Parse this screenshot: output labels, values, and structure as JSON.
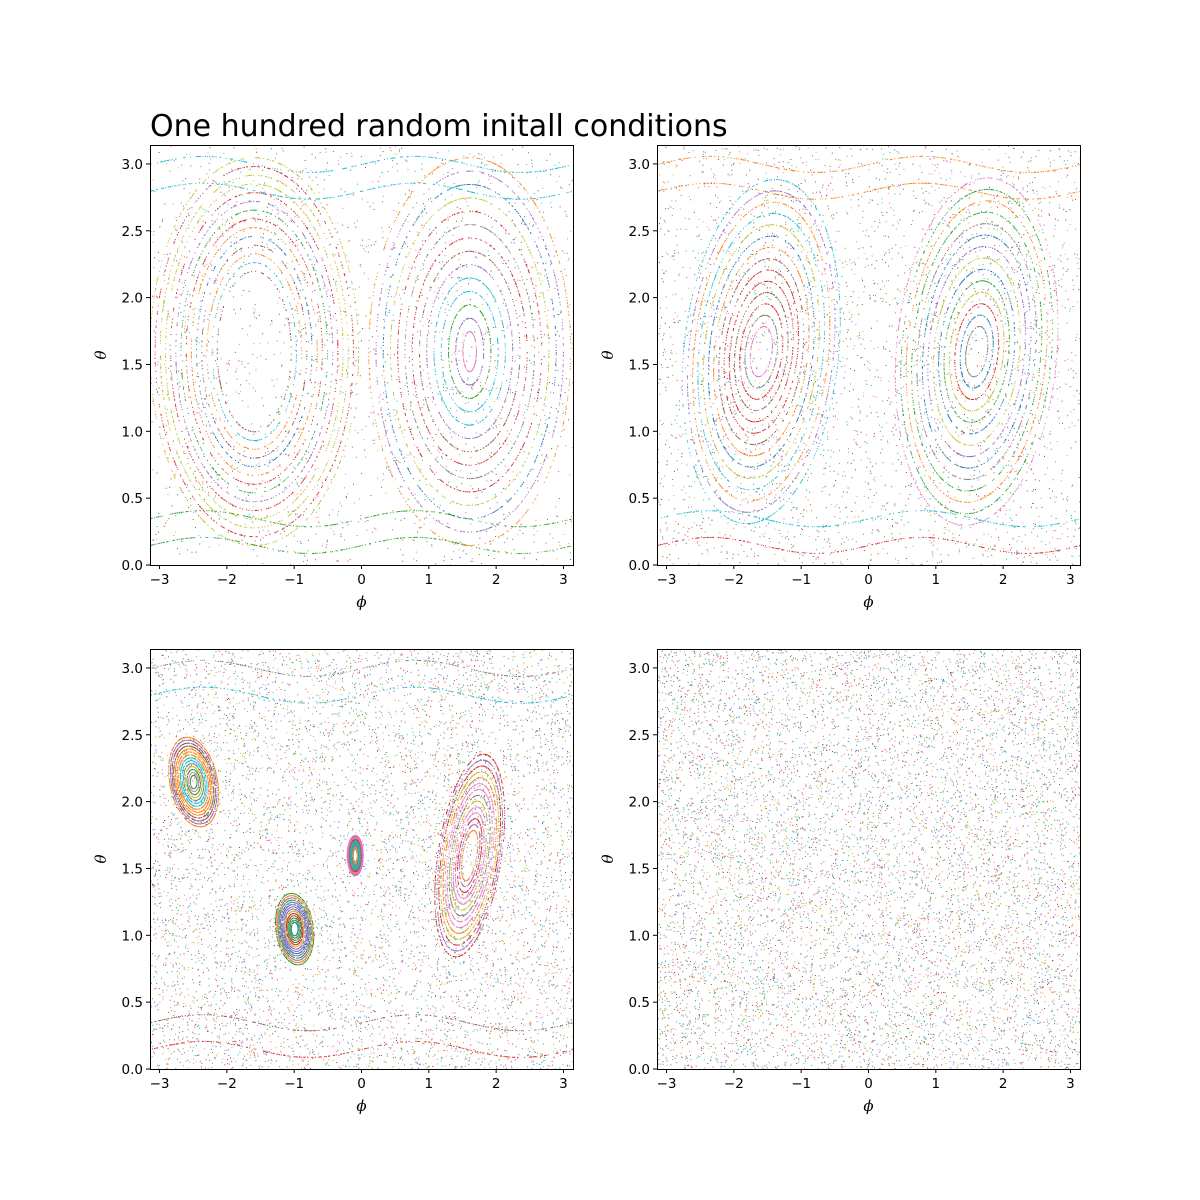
{
  "figure": {
    "title": "One hundred random initall conditions"
  },
  "palette": [
    "#1f77b4",
    "#ff7f0e",
    "#2ca02c",
    "#d62728",
    "#9467bd",
    "#8c564b",
    "#e377c2",
    "#17becf",
    "#bcbd22",
    "#7f7f7f"
  ],
  "chart_data": [
    {
      "type": "scatter",
      "description": "Poincare section, mostly regular orbits",
      "xlabel": "ϕ",
      "ylabel": "θ",
      "xlim": [
        -3.1416,
        3.1416
      ],
      "ylim": [
        0.0,
        3.1416
      ],
      "xticks": [
        -3,
        -2,
        -1,
        0,
        1,
        2,
        3
      ],
      "xtick_labels": [
        "−3",
        "−2",
        "−1",
        "0",
        "1",
        "2",
        "3"
      ],
      "yticks": [
        0.0,
        0.5,
        1.0,
        1.5,
        2.0,
        2.5,
        3.0
      ],
      "ytick_labels": [
        "0.0",
        "0.5",
        "1.0",
        "1.5",
        "2.0",
        "2.5",
        "3.0"
      ],
      "grid": false,
      "islands": [
        {
          "cx": -1.6,
          "cy": 1.6,
          "rx_min": 0.55,
          "rx_max": 1.55,
          "ry_min": 0.6,
          "ry_max": 1.45,
          "tilt": 0.0
        },
        {
          "cx": 1.6,
          "cy": 1.6,
          "rx_min": 0.1,
          "rx_max": 1.5,
          "ry_min": 0.15,
          "ry_max": 1.45,
          "tilt": 0.0
        }
      ],
      "chaos_fraction": 0.1
    },
    {
      "type": "scatter",
      "description": "Poincare section, tilted islands",
      "xlabel": "ϕ",
      "ylabel": "θ",
      "xlim": [
        -3.1416,
        3.1416
      ],
      "ylim": [
        0.0,
        3.1416
      ],
      "xticks": [
        -3,
        -2,
        -1,
        0,
        1,
        2,
        3
      ],
      "xtick_labels": [
        "−3",
        "−2",
        "−1",
        "0",
        "1",
        "2",
        "3"
      ],
      "yticks": [
        0.0,
        0.5,
        1.0,
        1.5,
        2.0,
        2.5,
        3.0
      ],
      "ytick_labels": [
        "0.0",
        "0.5",
        "1.0",
        "1.5",
        "2.0",
        "2.5",
        "3.0"
      ],
      "grid": false,
      "islands": [
        {
          "cx": -1.6,
          "cy": 1.6,
          "rx_min": 0.15,
          "rx_max": 1.1,
          "ry_min": 0.2,
          "ry_max": 1.35,
          "tilt": -0.55
        },
        {
          "cx": 1.6,
          "cy": 1.6,
          "rx_min": 0.15,
          "rx_max": 1.15,
          "ry_min": 0.2,
          "ry_max": 1.35,
          "tilt": -0.55
        }
      ],
      "chaos_fraction": 0.25
    },
    {
      "type": "scatter",
      "description": "Poincare section, mostly chaotic with small islands",
      "xlabel": "ϕ",
      "ylabel": "θ",
      "xlim": [
        -3.1416,
        3.1416
      ],
      "ylim": [
        0.0,
        3.1416
      ],
      "xticks": [
        -3,
        -2,
        -1,
        0,
        1,
        2,
        3
      ],
      "xtick_labels": [
        "−3",
        "−2",
        "−1",
        "0",
        "1",
        "2",
        "3"
      ],
      "yticks": [
        0.0,
        0.5,
        1.0,
        1.5,
        2.0,
        2.5,
        3.0
      ],
      "ytick_labels": [
        "0.0",
        "0.5",
        "1.0",
        "1.5",
        "2.0",
        "2.5",
        "3.0"
      ],
      "grid": false,
      "islands": [
        {
          "cx": 1.6,
          "cy": 1.6,
          "rx_min": 0.1,
          "rx_max": 0.45,
          "ry_min": 0.2,
          "ry_max": 0.8,
          "tilt": -0.4
        },
        {
          "cx": -2.5,
          "cy": 2.15,
          "rx_min": 0.05,
          "rx_max": 0.4,
          "ry_min": 0.05,
          "ry_max": 0.3,
          "tilt": -0.6
        },
        {
          "cx": -1.0,
          "cy": 1.05,
          "rx_min": 0.05,
          "rx_max": 0.3,
          "ry_min": 0.05,
          "ry_max": 0.25,
          "tilt": -0.6
        },
        {
          "cx": -0.1,
          "cy": 1.6,
          "rx_min": 0.03,
          "rx_max": 0.12,
          "ry_min": 0.05,
          "ry_max": 0.15,
          "tilt": 0.0
        }
      ],
      "chaos_fraction": 0.7
    },
    {
      "type": "scatter",
      "description": "Poincare section, fully chaotic",
      "xlabel": "ϕ",
      "ylabel": "θ",
      "xlim": [
        -3.1416,
        3.1416
      ],
      "ylim": [
        0.0,
        3.1416
      ],
      "xticks": [
        -3,
        -2,
        -1,
        0,
        1,
        2,
        3
      ],
      "xtick_labels": [
        "−3",
        "−2",
        "−1",
        "0",
        "1",
        "2",
        "3"
      ],
      "yticks": [
        0.0,
        0.5,
        1.0,
        1.5,
        2.0,
        2.5,
        3.0
      ],
      "ytick_labels": [
        "0.0",
        "0.5",
        "1.0",
        "1.5",
        "2.0",
        "2.5",
        "3.0"
      ],
      "grid": false,
      "islands": [],
      "chaos_fraction": 1.0
    }
  ]
}
